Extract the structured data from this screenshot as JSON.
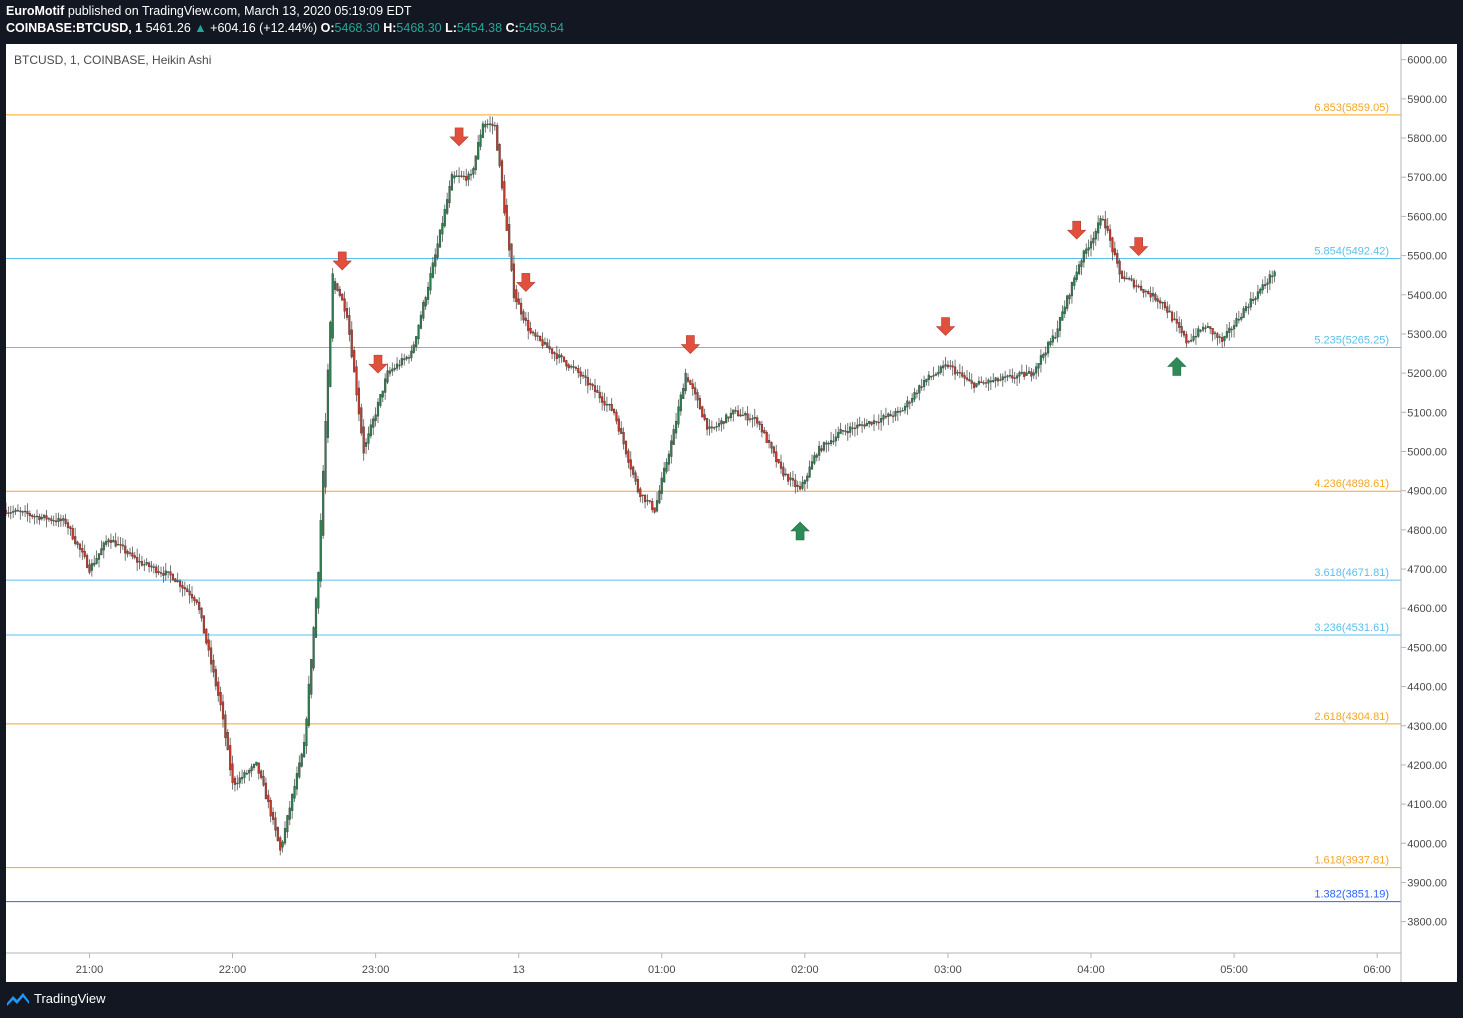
{
  "header": {
    "author": "EuroMotif",
    "published": "published on TradingView.com, March 13, 2020 05:19:09 EDT",
    "symbol": "COINBASE:BTCUSD, 1",
    "price": "5461.26",
    "change": "+604.16 (+12.44%)",
    "o_label": "O:",
    "o_value": "5468.30",
    "h_label": "H:",
    "h_value": "5468.30",
    "l_label": "L:",
    "l_value": "5454.38",
    "c_label": "C:",
    "c_value": "5459.54"
  },
  "footer": {
    "brand": "TradingView"
  },
  "colors": {
    "up": "#26a69a",
    "up_candle": "#2e7d4f",
    "down_candle": "#c0392b",
    "orange": "#f5a623",
    "light_blue": "#5bc0eb",
    "blue": "#2962ff",
    "marker_red": "#e0503c",
    "marker_green": "#2e8b57"
  },
  "chart_data": {
    "type": "candlestick",
    "title": "BTCUSD, 1, COINBASE, Heikin Ashi",
    "ylim": [
      3720,
      6040
    ],
    "y_ticks": [
      "6000.00",
      "5900.00",
      "5800.00",
      "5700.00",
      "5600.00",
      "5500.00",
      "5400.00",
      "5300.00",
      "5200.00",
      "5100.00",
      "5000.00",
      "4900.00",
      "4800.00",
      "4700.00",
      "4600.00",
      "4500.00",
      "4400.00",
      "4300.00",
      "4200.00",
      "4100.00",
      "4000.00",
      "3900.00",
      "3800.00"
    ],
    "x_ticks": [
      "21:00",
      "22:00",
      "23:00",
      "13",
      "01:00",
      "02:00",
      "03:00",
      "04:00",
      "05:00",
      "06:00"
    ],
    "x_range": [
      "2020-03-12 20:25",
      "2020-03-13 06:10"
    ],
    "levels": [
      {
        "label": "6.853(5859.05)",
        "value": 5859.05,
        "color": "orange"
      },
      {
        "label": "5.854(5492.42)",
        "value": 5492.42,
        "color": "light_blue"
      },
      {
        "label": "5.235(5265.25)",
        "value": 5265.25,
        "color": "light_blue"
      },
      {
        "label": "4.236(4898.61)",
        "value": 4898.61,
        "color": "orange"
      },
      {
        "label": "3.618(4671.81)",
        "value": 4671.81,
        "color": "light_blue"
      },
      {
        "label": "3.236(4531.61)",
        "value": 4531.61,
        "color": "light_blue"
      },
      {
        "label": "2.618(4304.81)",
        "value": 4304.81,
        "color": "orange"
      },
      {
        "label": "1.618(3937.81)",
        "value": 3937.81,
        "color": "orange"
      },
      {
        "label": "1.382(3851.19)",
        "value": 3851.19,
        "color": "blue"
      }
    ],
    "series": [
      {
        "time": [
          "2020-03-12 20:25",
          "2020-03-12 20:50",
          "2020-03-12 21:00",
          "2020-03-12 21:08",
          "2020-03-12 21:20",
          "2020-03-12 21:35",
          "2020-03-12 21:45",
          "2020-03-12 21:55",
          "2020-03-12 22:00",
          "2020-03-12 22:10",
          "2020-03-12 22:15",
          "2020-03-12 22:20",
          "2020-03-12 22:25",
          "2020-03-12 22:30",
          "2020-03-12 22:36",
          "2020-03-12 22:42",
          "2020-03-12 22:48",
          "2020-03-12 22:55",
          "2020-03-12 23:05",
          "2020-03-12 23:15",
          "2020-03-12 23:25",
          "2020-03-12 23:32",
          "2020-03-12 23:40",
          "2020-03-12 23:45",
          "2020-03-12 23:50",
          "2020-03-12 23:58",
          "2020-03-13 00:05",
          "2020-03-13 00:15",
          "2020-03-13 00:25",
          "2020-03-13 00:40",
          "2020-03-13 00:50",
          "2020-03-13 00:57",
          "2020-03-13 01:05",
          "2020-03-13 01:10",
          "2020-03-13 01:20",
          "2020-03-13 01:30",
          "2020-03-13 01:40",
          "2020-03-13 01:50",
          "2020-03-13 01:58",
          "2020-03-13 02:05",
          "2020-03-13 02:15",
          "2020-03-13 02:30",
          "2020-03-13 02:40",
          "2020-03-13 02:50",
          "2020-03-13 03:00",
          "2020-03-13 03:10",
          "2020-03-13 03:20",
          "2020-03-13 03:35",
          "2020-03-13 03:45",
          "2020-03-13 03:55",
          "2020-03-13 04:05",
          "2020-03-13 04:12",
          "2020-03-13 04:20",
          "2020-03-13 04:30",
          "2020-03-13 04:40",
          "2020-03-13 04:48",
          "2020-03-13 04:55",
          "2020-03-13 05:05",
          "2020-03-13 05:12",
          "2020-03-13 05:17"
        ],
        "close": [
          4850,
          4820,
          4700,
          4780,
          4720,
          4680,
          4620,
          4350,
          4150,
          4200,
          4100,
          3980,
          4120,
          4250,
          4700,
          5450,
          5350,
          5000,
          5200,
          5250,
          5500,
          5700,
          5700,
          5840,
          5830,
          5400,
          5300,
          5250,
          5200,
          5100,
          4900,
          4850,
          5050,
          5200,
          5050,
          5100,
          5080,
          4950,
          4900,
          5000,
          5050,
          5080,
          5100,
          5180,
          5220,
          5170,
          5180,
          5200,
          5300,
          5480,
          5600,
          5450,
          5420,
          5380,
          5280,
          5320,
          5280,
          5370,
          5420,
          5461
        ]
      }
    ],
    "markers": [
      {
        "time": "2020-03-12 22:46",
        "direction": "down"
      },
      {
        "time": "2020-03-12 23:01",
        "direction": "down"
      },
      {
        "time": "2020-03-12 23:35",
        "direction": "down"
      },
      {
        "time": "2020-03-13 00:03",
        "direction": "down"
      },
      {
        "time": "2020-03-13 01:12",
        "direction": "down"
      },
      {
        "time": "2020-03-13 02:59",
        "direction": "down"
      },
      {
        "time": "2020-03-13 03:54",
        "direction": "down"
      },
      {
        "time": "2020-03-13 04:20",
        "direction": "down"
      },
      {
        "time": "2020-03-13 01:58",
        "direction": "up"
      },
      {
        "time": "2020-03-13 04:36",
        "direction": "up"
      }
    ]
  }
}
